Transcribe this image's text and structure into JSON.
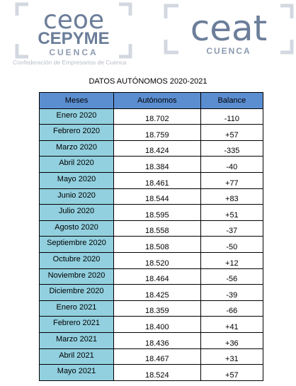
{
  "logos": {
    "left": {
      "lines": [
        "ceoe",
        "CEPYME",
        "CUENCA"
      ],
      "tagline": "Confederación de Empresarios de Cuenca"
    },
    "right": {
      "lines": [
        "ceat",
        "CUENCA"
      ]
    }
  },
  "title": "DATOS AUTÓNOMOS 2020-2021",
  "table": {
    "header": [
      "Meses",
      "Autónomos",
      "Balance"
    ],
    "rows": [
      [
        "Enero 2020",
        "18.702",
        "-110"
      ],
      [
        "Febrero 2020",
        "18.759",
        "+57"
      ],
      [
        "Marzo 2020",
        "18.424",
        "-335"
      ],
      [
        "Abril 2020",
        "18.384",
        "-40"
      ],
      [
        "Mayo 2020",
        "18.461",
        "+77"
      ],
      [
        "Junio 2020",
        "18.544",
        "+83"
      ],
      [
        "Julio 2020",
        "18.595",
        "+51"
      ],
      [
        "Agosto 2020",
        "18.558",
        "-37"
      ],
      [
        "Septiembre 2020",
        "18.508",
        "-50"
      ],
      [
        "Octubre 2020",
        "18.520",
        "+12"
      ],
      [
        "Noviembre 2020",
        "18.464",
        "-56"
      ],
      [
        "Diciembre 2020",
        "18.425",
        "-39"
      ],
      [
        "Enero 2021",
        "18.359",
        "-66"
      ],
      [
        "Febrero 2021",
        "18.400",
        "+41"
      ],
      [
        "Marzo 2021",
        "18.436",
        "+36"
      ],
      [
        "Abril 2021",
        "18.467",
        "+31"
      ],
      [
        "Mayo 2021",
        "18.524",
        "+57"
      ]
    ]
  }
}
